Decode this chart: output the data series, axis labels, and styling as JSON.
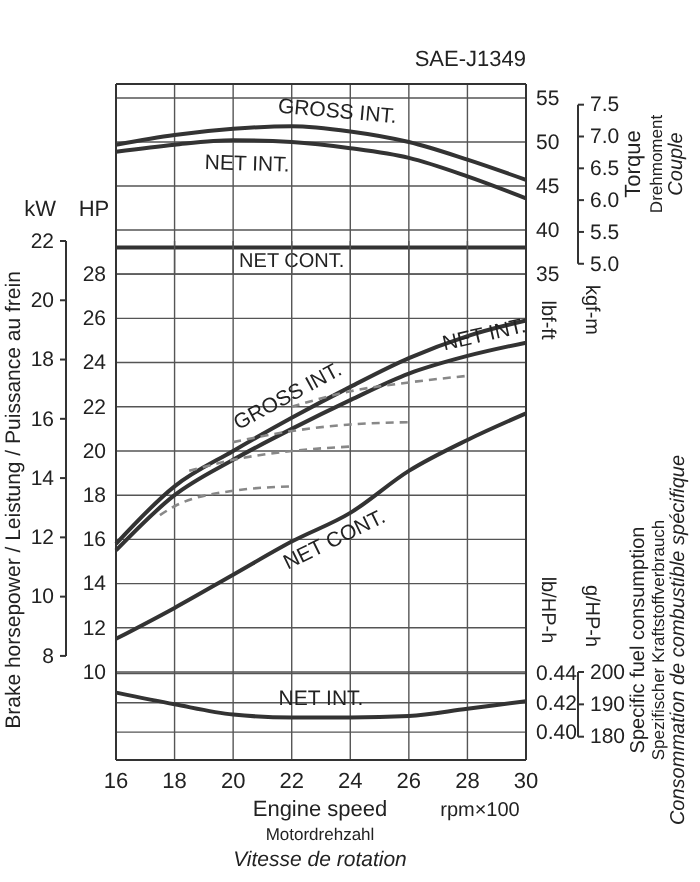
{
  "chart_data": [
    {
      "type": "line",
      "title": "SAE-J1349",
      "ylabel": "lbf-ft",
      "y2label": "kgf-m",
      "annotations": [
        "Torque",
        "Drehmoment",
        "Couple"
      ],
      "xlim": [
        16,
        30
      ],
      "xticks": [
        16,
        18,
        20,
        22,
        24,
        26,
        28,
        30
      ],
      "tick_labels": "y",
      "ylim": [
        35,
        56.6
      ],
      "yticks": [
        35,
        40,
        45,
        50,
        55
      ],
      "y2lim": [
        4.839,
        7.825
      ],
      "y2ticks": [
        {
          "value": 5,
          "label": "5.0"
        },
        {
          "value": 5.5,
          "label": "5.5"
        },
        {
          "value": 6,
          "label": "6.0"
        },
        {
          "value": 6.5,
          "label": "6.5"
        },
        {
          "value": 7,
          "label": "7.0"
        },
        {
          "value": 7.5,
          "label": "7.5"
        }
      ],
      "grid": true,
      "marker": "none",
      "series": [
        {
          "name": "GROSS INT.",
          "color": "#333333",
          "x": [
            16,
            18,
            20,
            22,
            24,
            26,
            28,
            30
          ],
          "values": [
            49.7,
            50.8,
            51.5,
            51.8,
            51.2,
            50.0,
            48.0,
            45.7
          ]
        },
        {
          "name": "NET INT.",
          "color": "#333333",
          "x": [
            16,
            18,
            20,
            22,
            24,
            26,
            28,
            30
          ],
          "values": [
            48.9,
            49.7,
            50.2,
            50.0,
            49.3,
            48.2,
            46.1,
            43.6
          ]
        },
        {
          "name": "NET CONT.",
          "color": "#333333",
          "x": [
            16,
            18,
            20,
            22,
            24,
            26,
            28,
            30
          ],
          "values": [
            38.0,
            38.0,
            38.0,
            38.0,
            38.0,
            38.0,
            38.0,
            38.0
          ]
        }
      ]
    },
    {
      "type": "line",
      "ylabel": "HP",
      "y2label": "kW",
      "annotations": [
        "Brake horsepower / Leistung / Puissance au frein"
      ],
      "xlim": [
        16,
        30
      ],
      "xticks": [
        16,
        18,
        20,
        22,
        24,
        26,
        28,
        30
      ],
      "tick_labels": "y",
      "ylim": [
        10,
        29.5
      ],
      "yticks": [
        10,
        12,
        14,
        16,
        18,
        20,
        22,
        24,
        26,
        28
      ],
      "y2lim": [
        7.457,
        22.0
      ],
      "y2ticks": [
        8,
        10,
        12,
        14,
        16,
        18,
        20,
        22
      ],
      "grid": true,
      "marker": "none",
      "series": [
        {
          "name": "GROSS INT.",
          "color": "#333333",
          "x": [
            16,
            18,
            20,
            22,
            24,
            26,
            28,
            30
          ],
          "values": [
            15.8,
            18.4,
            20.0,
            21.5,
            22.9,
            24.2,
            25.2,
            25.9
          ]
        },
        {
          "name": "NET INT.",
          "color": "#333333",
          "x": [
            16,
            18,
            20,
            22,
            24,
            26,
            28,
            30
          ],
          "values": [
            15.5,
            18.0,
            19.6,
            21.0,
            22.3,
            23.5,
            24.3,
            24.9
          ]
        },
        {
          "name": "NET CONT.",
          "color": "#333333",
          "x": [
            16,
            18,
            20,
            22,
            24,
            26,
            28,
            30
          ],
          "values": [
            11.5,
            12.9,
            14.4,
            15.9,
            17.2,
            19.1,
            20.5,
            21.7
          ]
        },
        {
          "color": "#888888",
          "line_style": "dashed",
          "x": [
            17.5,
            18,
            20,
            22
          ],
          "values": [
            17.1,
            17.5,
            18.2,
            18.4
          ]
        },
        {
          "color": "#888888",
          "line_style": "dashed",
          "x": [
            18.5,
            20,
            22,
            24
          ],
          "values": [
            19.1,
            19.6,
            20.0,
            20.2
          ]
        },
        {
          "color": "#888888",
          "line_style": "dashed",
          "x": [
            20,
            22,
            24,
            26
          ],
          "values": [
            20.4,
            20.9,
            21.2,
            21.3
          ]
        },
        {
          "color": "#888888",
          "line_style": "dashed",
          "x": [
            22,
            24,
            26,
            28
          ],
          "values": [
            22.0,
            22.7,
            23.1,
            23.4
          ]
        }
      ]
    },
    {
      "type": "line",
      "xlabel": "Engine speed",
      "ylabel": "lb/HP-h",
      "y2label": "g/HP-h",
      "annotations": [
        "Specific fuel consumption",
        "Spezifischer Kraftstoffverbrauch",
        "Consommation de combustible spécifique",
        "Motordrehzahl",
        "Vitesse de rotation",
        "rpm×100"
      ],
      "xlim": [
        16,
        30
      ],
      "xticks": [
        16,
        18,
        20,
        22,
        24,
        26,
        28,
        30
      ],
      "ylim": [
        0.381,
        0.441
      ],
      "yticks": [
        {
          "value": 0.4,
          "label": "0.40"
        },
        {
          "value": 0.42,
          "label": "0.42"
        },
        {
          "value": 0.44,
          "label": "0.44"
        }
      ],
      "y2lim": [
        172.8,
        200.0
      ],
      "y2ticks": [
        180,
        190,
        200
      ],
      "grid": true,
      "marker": "none",
      "series": [
        {
          "name": "NET INT.",
          "color": "#333333",
          "x": [
            16,
            18,
            20,
            22,
            24,
            26,
            28,
            30
          ],
          "values": [
            0.427,
            0.419,
            0.412,
            0.41,
            0.41,
            0.411,
            0.416,
            0.421
          ]
        }
      ]
    }
  ]
}
